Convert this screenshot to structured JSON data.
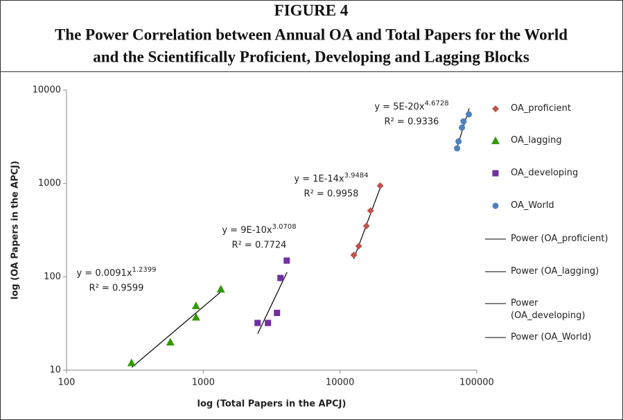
{
  "chart_data": {
    "type": "scatter",
    "figure_label": "FIGURE 4",
    "title": [
      "The Power Correlation between Annual OA and Total Papers for the World",
      "and the Scientifically Proficient, Developing and Lagging Blocks"
    ],
    "x_label": "log (Total Papers in the APCJ)",
    "y_label": "log (OA Papers in the APCJ)",
    "log_x": true,
    "log_y": true,
    "xlim": [
      100,
      100000
    ],
    "xticks": [
      100,
      1000,
      10000,
      100000
    ],
    "ylim": [
      10,
      10000
    ],
    "yticks": [
      10,
      100,
      1000,
      10000
    ],
    "series": [
      {
        "name": "OA_proficient",
        "color": "#c0504d",
        "marker": "diamond",
        "x": [
          12620,
          13700,
          15570,
          16700,
          19670
        ],
        "values": [
          171,
          213,
          350,
          510,
          944
        ],
        "trend": {
          "name": "Power (OA_proficient)",
          "x": [
            12600,
            20000
          ],
          "values": [
            155,
            960
          ],
          "eq": "y = 1E-14x",
          "exp": "3.9484",
          "r2": "R² = 0.9958"
        }
      },
      {
        "name": "OA_lagging",
        "color": "#339900",
        "marker": "triangle",
        "x": [
          299,
          574,
          885,
          885,
          1345
        ],
        "values": [
          12,
          20,
          37,
          49,
          74
        ],
        "trend": {
          "name": "Power (OA_lagging)",
          "x": [
            300,
            1350
          ],
          "values": [
            10.7,
            69.3
          ],
          "eq": "y = 0.0091x",
          "exp": "1.2399",
          "r2": "R² = 0.9599"
        }
      },
      {
        "name": "OA_developing",
        "color": "#7030a0",
        "marker": "square",
        "x": [
          2496,
          2972,
          3460,
          3670,
          4077
        ],
        "values": [
          32,
          32,
          41,
          97,
          149
        ],
        "trend": {
          "name": "Power (OA_developing)",
          "x": [
            2500,
            4100
          ],
          "values": [
            24.5,
            112
          ],
          "eq": "y = 9E-10x",
          "exp": "3.0708",
          "r2": "R² = 0.7724"
        }
      },
      {
        "name": "OA_World",
        "color": "#4f81bd",
        "marker": "circle",
        "x": [
          71800,
          73500,
          77900,
          80000,
          87500
        ],
        "values": [
          2376,
          2820,
          3965,
          4626,
          5500
        ],
        "trend": {
          "name": "Power (OA_World)",
          "x": [
            71000,
            88000
          ],
          "values": [
            2328,
            6370
          ],
          "eq": "y = 5E-20x",
          "exp": "4.6728",
          "r2": "R² = 0.9336"
        }
      }
    ]
  }
}
